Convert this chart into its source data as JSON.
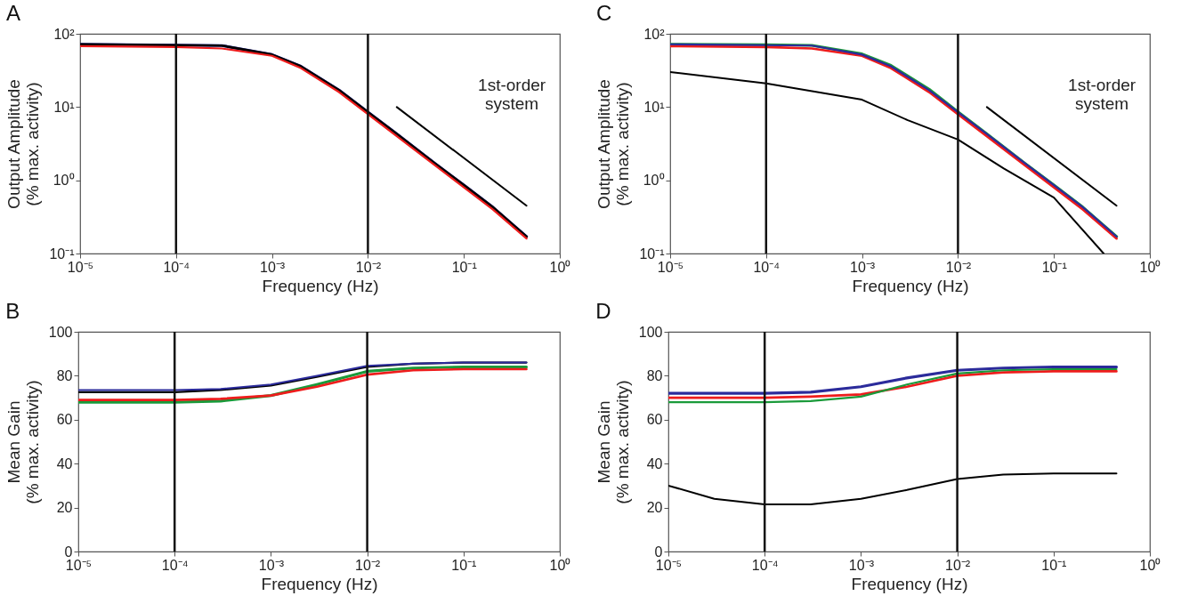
{
  "chart_data": [
    {
      "type": "line",
      "title": "A",
      "xlabel": "Frequency (Hz)",
      "ylabel": "Output Amplitude\n(% max. activity)",
      "log": "xy",
      "xlim": [
        1e-05,
        1
      ],
      "ylim": [
        0.1,
        100
      ],
      "xticks": [
        {
          "value": 1e-05,
          "label": "10⁻⁵"
        },
        {
          "value": 0.0001,
          "label": "10⁻⁴"
        },
        {
          "value": 0.001,
          "label": "10⁻³"
        },
        {
          "value": 0.01,
          "label": "10⁻²"
        },
        {
          "value": 0.1,
          "label": "10⁻¹"
        },
        {
          "value": 1,
          "label": "10⁰"
        }
      ],
      "yticks": [
        {
          "value": 0.1,
          "label": "10⁻¹"
        },
        {
          "value": 1,
          "label": "10⁰"
        },
        {
          "value": 10,
          "label": "10¹"
        },
        {
          "value": 100,
          "label": "10²"
        }
      ],
      "x": [
        1e-05,
        0.0001,
        0.0003,
        0.001,
        0.002,
        0.005,
        0.01,
        0.02,
        0.05,
        0.1,
        0.2,
        0.45
      ],
      "series": [
        {
          "color": "#2b2b9b",
          "values": [
            72,
            70,
            69,
            52,
            36,
            17,
            8.5,
            4.3,
            1.7,
            0.86,
            0.43,
            0.17
          ]
        },
        {
          "color": "#000000",
          "values": [
            72,
            70,
            69,
            52,
            36,
            17,
            8.5,
            4.3,
            1.7,
            0.86,
            0.43,
            0.17
          ]
        },
        {
          "color": "#ee1c1c",
          "values": [
            68,
            66,
            63,
            50,
            34,
            16,
            8,
            4,
            1.6,
            0.8,
            0.4,
            0.16
          ]
        },
        {
          "type": "line",
          "color": "#000000",
          "x": [
            0.02,
            0.45
          ],
          "values": [
            10,
            0.45
          ]
        }
      ],
      "ref_lines": [
        {
          "axis": "x",
          "value": 0.0001
        },
        {
          "axis": "x",
          "value": 0.01
        }
      ],
      "annotations": [
        "1st-order\nsystem"
      ],
      "grid": false,
      "marker": "none",
      "line_style": "solid"
    },
    {
      "type": "line",
      "title": "C",
      "xlabel": "Frequency (Hz)",
      "ylabel": "Output Amplitude\n(% max. activity)",
      "log": "xy",
      "xlim": [
        1e-05,
        1
      ],
      "ylim": [
        0.1,
        100
      ],
      "xticks": [
        {
          "value": 1e-05,
          "label": "10⁻⁵"
        },
        {
          "value": 0.0001,
          "label": "10⁻⁴"
        },
        {
          "value": 0.001,
          "label": "10⁻³"
        },
        {
          "value": 0.01,
          "label": "10⁻²"
        },
        {
          "value": 0.1,
          "label": "10⁻¹"
        },
        {
          "value": 1,
          "label": "10⁰"
        }
      ],
      "yticks": [
        {
          "value": 0.1,
          "label": "10⁻¹"
        },
        {
          "value": 1,
          "label": "10⁰"
        },
        {
          "value": 10,
          "label": "10¹"
        },
        {
          "value": 100,
          "label": "10²"
        }
      ],
      "x": [
        1e-05,
        0.0001,
        0.0003,
        0.001,
        0.002,
        0.005,
        0.01,
        0.02,
        0.05,
        0.1,
        0.2,
        0.45
      ],
      "series": [
        {
          "color": "#1a9a3a",
          "values": [
            72,
            71,
            69.5,
            53,
            37,
            17.5,
            8.6,
            4.3,
            1.7,
            0.86,
            0.43,
            0.17
          ]
        },
        {
          "color": "#ee1c1c",
          "values": [
            68,
            66,
            63,
            50,
            34,
            16,
            8,
            4,
            1.6,
            0.8,
            0.4,
            0.16
          ]
        },
        {
          "color": "#2b2b9b",
          "values": [
            72,
            70,
            69,
            52,
            36,
            17,
            8.5,
            4.3,
            1.7,
            0.86,
            0.43,
            0.17
          ]
        },
        {
          "color": "#000000",
          "x": [
            1e-05,
            0.0001,
            0.001,
            0.003,
            0.01,
            0.03,
            0.1,
            0.33
          ],
          "values": [
            30,
            21,
            12.6,
            6.6,
            3.6,
            1.45,
            0.58,
            0.1
          ]
        },
        {
          "type": "line",
          "color": "#000000",
          "x": [
            0.02,
            0.45
          ],
          "values": [
            10,
            0.45
          ]
        }
      ],
      "ref_lines": [
        {
          "axis": "x",
          "value": 0.0001
        },
        {
          "axis": "x",
          "value": 0.01
        }
      ],
      "annotations": [
        "1st-order\nsystem"
      ],
      "grid": false,
      "marker": "none",
      "line_style": "solid"
    },
    {
      "type": "line",
      "title": "B",
      "xlabel": "Frequency (Hz)",
      "ylabel": "Mean Gain\n(% max. activity)",
      "log": "x",
      "xlim": [
        1e-05,
        1
      ],
      "ylim": [
        0,
        100
      ],
      "xticks": [
        {
          "value": 1e-05,
          "label": "10⁻⁵"
        },
        {
          "value": 0.0001,
          "label": "10⁻⁴"
        },
        {
          "value": 0.001,
          "label": "10⁻³"
        },
        {
          "value": 0.01,
          "label": "10⁻²"
        },
        {
          "value": 0.1,
          "label": "10⁻¹"
        },
        {
          "value": 1,
          "label": "10⁰"
        }
      ],
      "yticks": [
        0,
        20,
        40,
        60,
        80,
        100
      ],
      "x": [
        1e-05,
        0.0001,
        0.0003,
        0.001,
        0.003,
        0.01,
        0.03,
        0.1,
        0.45
      ],
      "series": [
        {
          "color": "#1a9a3a",
          "values": [
            68,
            68,
            68.5,
            71,
            76,
            82,
            83.5,
            84,
            84
          ]
        },
        {
          "color": "#ee1c1c",
          "values": [
            69,
            69,
            69.5,
            71,
            75,
            80.5,
            82.5,
            83,
            83
          ]
        },
        {
          "color": "#000000",
          "values": [
            72.5,
            72.5,
            73.5,
            75.5,
            79.5,
            84,
            85.5,
            86,
            86
          ]
        },
        {
          "color": "#2b2b9b",
          "values": [
            73.5,
            73.5,
            74,
            76,
            80,
            84.5,
            85.5,
            86,
            86
          ]
        }
      ],
      "ref_lines": [
        {
          "axis": "x",
          "value": 0.0001
        },
        {
          "axis": "x",
          "value": 0.01
        }
      ],
      "grid": false,
      "marker": "none",
      "line_style": "solid"
    },
    {
      "type": "line",
      "title": "D",
      "xlabel": "Frequency (Hz)",
      "ylabel": "Mean Gain\n(% max. activity)",
      "log": "x",
      "xlim": [
        1e-05,
        1
      ],
      "ylim": [
        0,
        100
      ],
      "xticks": [
        {
          "value": 1e-05,
          "label": "10⁻⁵"
        },
        {
          "value": 0.0001,
          "label": "10⁻⁴"
        },
        {
          "value": 0.001,
          "label": "10⁻³"
        },
        {
          "value": 0.01,
          "label": "10⁻²"
        },
        {
          "value": 0.1,
          "label": "10⁻¹"
        },
        {
          "value": 1,
          "label": "10⁰"
        }
      ],
      "yticks": [
        0,
        20,
        40,
        60,
        80,
        100
      ],
      "x": [
        1e-05,
        0.0001,
        0.0003,
        0.001,
        0.003,
        0.01,
        0.03,
        0.1,
        0.45
      ],
      "series": [
        {
          "color": "#2b2b9b",
          "values": [
            72,
            72,
            72.5,
            75,
            79,
            82.5,
            83.5,
            84,
            84
          ]
        },
        {
          "color": "#ee1c1c",
          "values": [
            70,
            70,
            70.5,
            71.5,
            75,
            80,
            81.5,
            82,
            82
          ]
        },
        {
          "color": "#1a9a3a",
          "values": [
            68,
            68,
            68.5,
            70.5,
            76,
            81,
            82.5,
            83,
            83
          ]
        },
        {
          "color": "#000000",
          "x": [
            1e-05,
            3e-05,
            0.0001,
            0.0003,
            0.001,
            0.003,
            0.01,
            0.03,
            0.1,
            0.45
          ],
          "values": [
            30,
            24,
            21.5,
            21.5,
            24,
            28,
            33,
            35,
            35.5,
            35.5
          ]
        }
      ],
      "ref_lines": [
        {
          "axis": "x",
          "value": 0.0001
        },
        {
          "axis": "x",
          "value": 0.01
        }
      ],
      "grid": false,
      "marker": "none",
      "line_style": "solid"
    }
  ]
}
